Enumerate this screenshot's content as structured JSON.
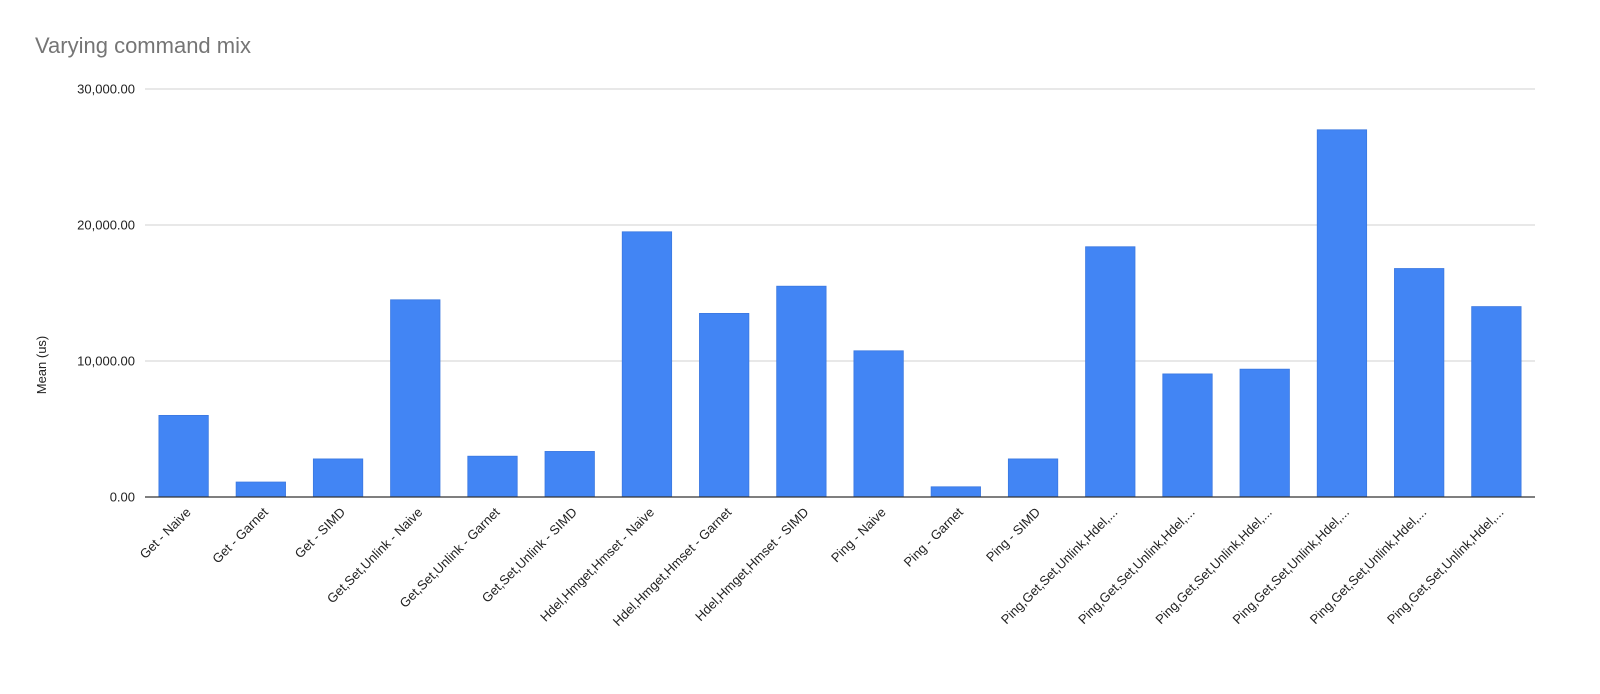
{
  "chart_data": {
    "type": "bar",
    "title": "Varying command mix",
    "xlabel": "",
    "ylabel": "Mean (us)",
    "ylim": [
      0,
      30000
    ],
    "yticks": [
      "0.00",
      "10,000.00",
      "20,000.00",
      "30,000.00"
    ],
    "ytick_values": [
      0,
      10000,
      20000,
      30000
    ],
    "grid": true,
    "bar_color": "#4285f4",
    "categories": [
      "Get - Naive",
      "Get - Garnet",
      "Get - SIMD",
      "Get,Set,Unlink - Naive",
      "Get,Set,Unlink - Garnet",
      "Get,Set,Unlink - SIMD",
      "Hdel,Hmget,Hmset - Naive",
      "Hdel,Hmget,Hmset - Garnet",
      "Hdel,Hmget,Hmset - SIMD",
      "Ping - Naive",
      "Ping - Garnet",
      "Ping - SIMD",
      "Ping,Get,Set,Unlink,Hdel,...",
      "Ping,Get,Set,Unlink,Hdel,...",
      "Ping,Get,Set,Unlink,Hdel,...",
      "Ping,Get,Set,Unlink,Hdel,...",
      "Ping,Get,Set,Unlink,Hdel,...",
      "Ping,Get,Set,Unlink,Hdel,..."
    ],
    "values": [
      6000,
      1100,
      2800,
      14500,
      3000,
      3350,
      19500,
      13500,
      15500,
      10750,
      750,
      2800,
      18400,
      9050,
      9400,
      27000,
      16800,
      14000
    ]
  }
}
